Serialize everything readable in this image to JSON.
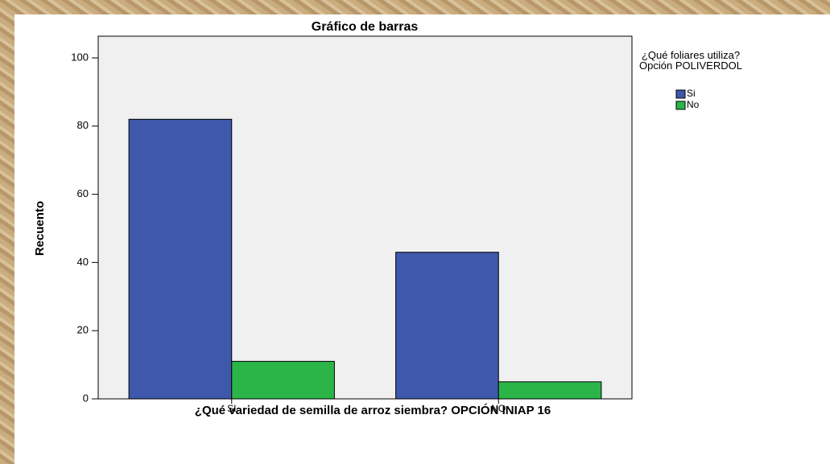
{
  "chart_data": {
    "type": "bar",
    "title": "Gráfico de barras",
    "x_label": "¿Qué variedad de semilla de arroz siembra? OPCIÓN INIAP 16",
    "y_label": "Recuento",
    "legend_title": "¿Qué foliares utiliza? Opción POLIVERDOL",
    "categories": [
      "SI",
      "NO"
    ],
    "series": [
      {
        "name": "Si",
        "color": "#3e58ac",
        "values": [
          82,
          43
        ]
      },
      {
        "name": "No",
        "color": "#2bb548",
        "values": [
          11,
          5
        ]
      }
    ],
    "ylim": [
      0,
      100
    ],
    "yticks": [
      0,
      20,
      40,
      60,
      80,
      100
    ],
    "legend": "right"
  }
}
